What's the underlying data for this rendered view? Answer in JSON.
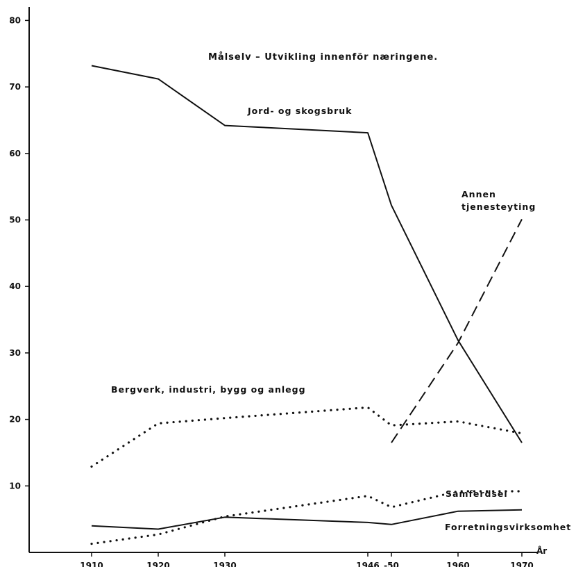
{
  "chart_data": {
    "type": "line",
    "title": "Målselv – Utvikling innenför næringene.",
    "xlabel": "År",
    "ylabel": "",
    "x": [
      1910,
      1920,
      1930,
      1946,
      1950,
      1960,
      1970
    ],
    "x_tick_labels": [
      "1910",
      "1920",
      "1930",
      "1946",
      "-50",
      "1960",
      "1970"
    ],
    "y_ticks": [
      10,
      20,
      30,
      40,
      50,
      60,
      70,
      80
    ],
    "y_tick_labels": [
      "10",
      "20",
      "30",
      "40",
      "50",
      "60",
      "70",
      "80"
    ],
    "ylim": [
      0,
      80
    ],
    "grid": false,
    "series": [
      {
        "name": "Jord- og skogsbruk",
        "style": "solid",
        "x": [
          1910,
          1920,
          1930,
          1946,
          1950,
          1960,
          1970
        ],
        "values": [
          73.2,
          71.2,
          64.2,
          63.1,
          52.2,
          31.9,
          16.5
        ]
      },
      {
        "name": "Annen tjenesteyting",
        "style": "dashed",
        "x": [
          1950,
          1960,
          1970
        ],
        "values": [
          16.5,
          31.5,
          50.1
        ]
      },
      {
        "name": "Bergverk, industri, bygg og anlegg",
        "style": "dotted",
        "x": [
          1910,
          1920,
          1930,
          1946,
          1950,
          1960,
          1970
        ],
        "values": [
          12.9,
          19.4,
          20.2,
          21.8,
          19.1,
          19.7,
          17.9
        ]
      },
      {
        "name": "Samferdsel",
        "style": "dotted",
        "x": [
          1910,
          1920,
          1930,
          1946,
          1950,
          1960,
          1970
        ],
        "values": [
          1.3,
          2.7,
          5.4,
          8.5,
          6.8,
          9.2,
          9.2
        ]
      },
      {
        "name": "Forretningsvirksomhet",
        "style": "solid",
        "x": [
          1910,
          1920,
          1930,
          1946,
          1950,
          1960,
          1970
        ],
        "values": [
          4.0,
          3.5,
          5.3,
          4.5,
          4.2,
          6.2,
          6.4
        ]
      }
    ],
    "annotations": [
      {
        "text": "Jord- og skogsbruk"
      },
      {
        "text": "Annen"
      },
      {
        "text": "tjenesteyting"
      },
      {
        "text": "Bergverk, industri, bygg og anlegg"
      },
      {
        "text": "Samferdsel"
      },
      {
        "text": "Forretningsvirksomhet"
      }
    ]
  }
}
